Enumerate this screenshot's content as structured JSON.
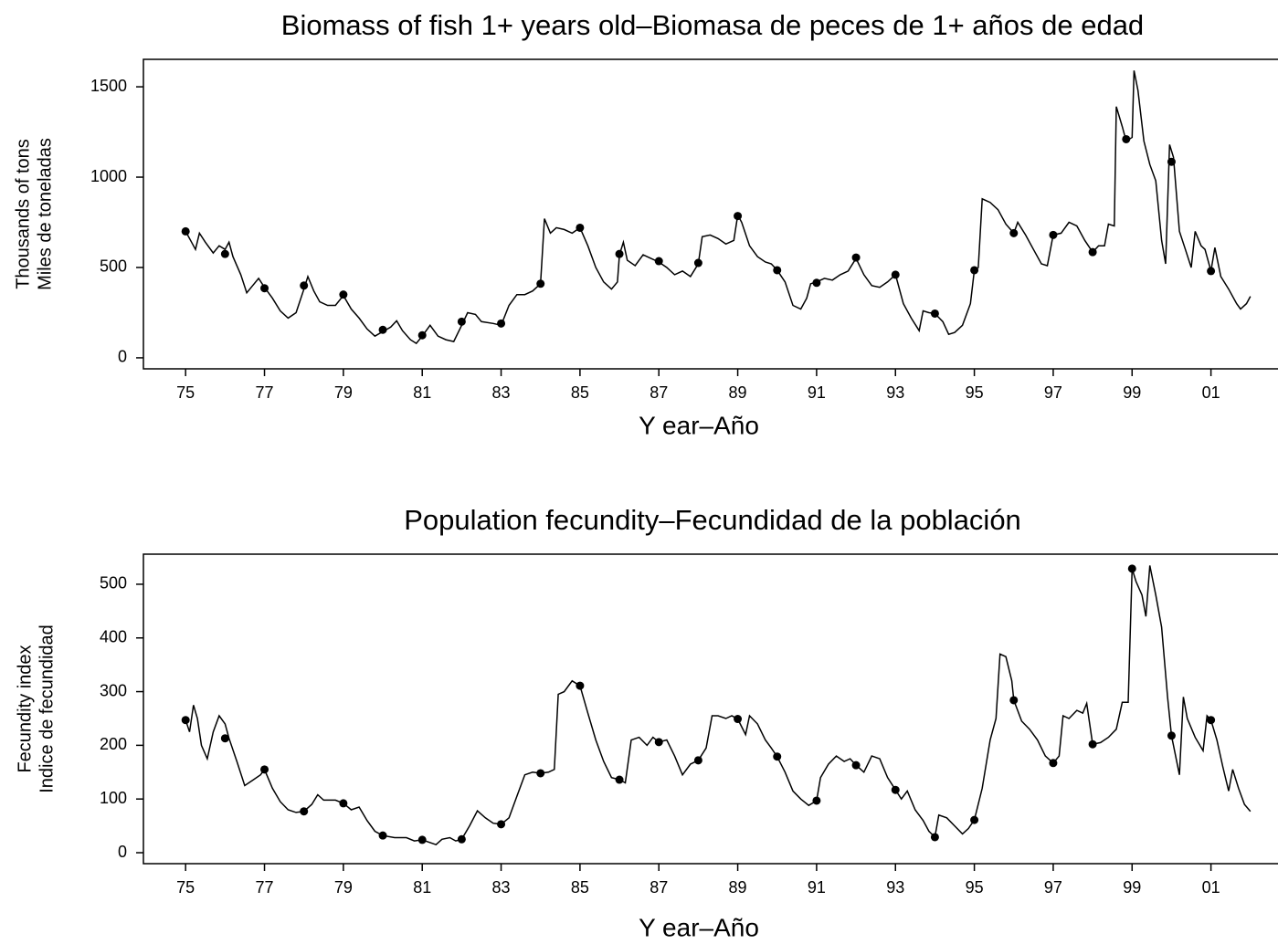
{
  "chart_data": [
    {
      "type": "line",
      "title": "Biomass of fish 1+ years old–Biomasa de peces de 1+ años de edad",
      "xlabel": "Y ear–Año",
      "ylabel": [
        "Thousands of tons",
        "Miles de toneladas"
      ],
      "xlim": [
        1973.93,
        2002.7
      ],
      "ylim": [
        -61,
        1652
      ],
      "xticks": [
        {
          "value": 1975,
          "label": "75"
        },
        {
          "value": 1977,
          "label": "77"
        },
        {
          "value": 1979,
          "label": "79"
        },
        {
          "value": 1981,
          "label": "81"
        },
        {
          "value": 1983,
          "label": "83"
        },
        {
          "value": 1985,
          "label": "85"
        },
        {
          "value": 1987,
          "label": "87"
        },
        {
          "value": 1989,
          "label": "89"
        },
        {
          "value": 1991,
          "label": "91"
        },
        {
          "value": 1993,
          "label": "93"
        },
        {
          "value": 1995,
          "label": "95"
        },
        {
          "value": 1997,
          "label": "97"
        },
        {
          "value": 1999,
          "label": "99"
        },
        {
          "value": 2001,
          "label": "01"
        }
      ],
      "yticks": [
        0,
        500,
        1000,
        1500
      ],
      "series": [
        {
          "style": "line",
          "color": "#000000",
          "x": [
            1975.0,
            1975.15,
            1975.25,
            1975.35,
            1975.5,
            1975.7,
            1975.85,
            1976.0,
            1976.1,
            1976.2,
            1976.4,
            1976.55,
            1976.7,
            1976.85,
            1977.0,
            1977.2,
            1977.4,
            1977.6,
            1977.8,
            1978.0,
            1978.1,
            1978.25,
            1978.4,
            1978.6,
            1978.8,
            1979.0,
            1979.2,
            1979.4,
            1979.6,
            1979.8,
            1980.0,
            1980.2,
            1980.35,
            1980.5,
            1980.7,
            1980.85,
            1981.0,
            1981.2,
            1981.4,
            1981.6,
            1981.8,
            1982.0,
            1982.15,
            1982.35,
            1982.5,
            1982.8,
            1983.0,
            1983.2,
            1983.4,
            1983.6,
            1983.8,
            1984.0,
            1984.1,
            1984.25,
            1984.4,
            1984.6,
            1984.8,
            1985.0,
            1985.2,
            1985.4,
            1985.6,
            1985.8,
            1985.95,
            1986.0,
            1986.1,
            1986.2,
            1986.4,
            1986.6,
            1986.8,
            1987.0,
            1987.2,
            1987.4,
            1987.6,
            1987.8,
            1988.0,
            1988.1,
            1988.3,
            1988.5,
            1988.7,
            1988.9,
            1989.0,
            1989.1,
            1989.3,
            1989.5,
            1989.7,
            1989.85,
            1990.0,
            1990.2,
            1990.4,
            1990.6,
            1990.75,
            1990.85,
            1991.0,
            1991.2,
            1991.4,
            1991.6,
            1991.8,
            1992.0,
            1992.2,
            1992.4,
            1992.6,
            1992.8,
            1993.0,
            1993.2,
            1993.4,
            1993.6,
            1993.7,
            1993.85,
            1994.0,
            1994.2,
            1994.35,
            1994.5,
            1994.7,
            1994.9,
            1995.0,
            1995.1,
            1995.2,
            1995.4,
            1995.6,
            1995.8,
            1996.0,
            1996.1,
            1996.3,
            1996.5,
            1996.7,
            1996.85,
            1997.0,
            1997.2,
            1997.4,
            1997.6,
            1997.8,
            1998.0,
            1998.15,
            1998.3,
            1998.4,
            1998.55,
            1998.6,
            1998.75,
            1998.85,
            1999.0,
            1999.05,
            1999.15,
            1999.3,
            1999.45,
            1999.6,
            1999.75,
            1999.85,
            1999.95,
            2000.05,
            2000.2,
            2000.35,
            2000.5,
            2000.6,
            2000.75,
            2000.85,
            2001.0,
            2001.1,
            2001.25,
            2001.45,
            2001.65,
            2001.75,
            2001.9,
            2002.0
          ],
          "values": [
            700,
            640,
            600,
            690,
            640,
            580,
            620,
            600,
            640,
            560,
            460,
            360,
            400,
            440,
            390,
            330,
            260,
            220,
            250,
            380,
            450,
            370,
            310,
            290,
            290,
            345,
            270,
            220,
            160,
            120,
            145,
            170,
            205,
            150,
            100,
            80,
            120,
            180,
            120,
            100,
            90,
            180,
            250,
            240,
            200,
            190,
            180,
            290,
            350,
            350,
            370,
            410,
            770,
            690,
            720,
            710,
            690,
            720,
            620,
            500,
            420,
            380,
            420,
            570,
            640,
            540,
            510,
            570,
            550,
            530,
            500,
            460,
            480,
            450,
            520,
            670,
            680,
            660,
            630,
            650,
            790,
            750,
            620,
            560,
            530,
            520,
            485,
            420,
            290,
            270,
            330,
            410,
            420,
            440,
            430,
            460,
            480,
            550,
            460,
            400,
            390,
            420,
            460,
            300,
            220,
            150,
            260,
            250,
            245,
            200,
            130,
            140,
            180,
            300,
            485,
            500,
            880,
            860,
            820,
            740,
            690,
            750,
            680,
            600,
            520,
            510,
            680,
            690,
            750,
            730,
            650,
            585,
            620,
            620,
            740,
            730,
            1390,
            1280,
            1200,
            1220,
            1590,
            1480,
            1200,
            1070,
            980,
            650,
            520,
            1180,
            1110,
            700,
            600,
            500,
            700,
            620,
            600,
            480,
            610,
            450,
            380,
            300,
            270,
            300,
            340
          ]
        },
        {
          "style": "markers",
          "color": "#000000",
          "x": [
            1975,
            1976,
            1977,
            1978,
            1979,
            1980,
            1981,
            1982,
            1983,
            1984,
            1985,
            1986,
            1987,
            1988,
            1989,
            1990,
            1991,
            1992,
            1993,
            1994,
            1995,
            1996,
            1997,
            1998,
            1998.85,
            2000,
            2001
          ],
          "values": [
            700,
            575,
            385,
            400,
            350,
            155,
            125,
            200,
            190,
            410,
            720,
            575,
            535,
            525,
            785,
            485,
            415,
            555,
            460,
            245,
            485,
            690,
            680,
            585,
            1210,
            1085,
            480
          ]
        }
      ]
    },
    {
      "type": "line",
      "title": "Population fecundity–Fecundidad de la población",
      "xlabel": "Y ear–Año",
      "ylabel": [
        "Fecundity index",
        "Indice de fecundidad"
      ],
      "xlim": [
        1973.93,
        2002.7
      ],
      "ylim": [
        -20.4,
        556
      ],
      "xticks": [
        {
          "value": 1975,
          "label": "75"
        },
        {
          "value": 1977,
          "label": "77"
        },
        {
          "value": 1979,
          "label": "79"
        },
        {
          "value": 1981,
          "label": "81"
        },
        {
          "value": 1983,
          "label": "83"
        },
        {
          "value": 1985,
          "label": "85"
        },
        {
          "value": 1987,
          "label": "87"
        },
        {
          "value": 1989,
          "label": "89"
        },
        {
          "value": 1991,
          "label": "91"
        },
        {
          "value": 1993,
          "label": "93"
        },
        {
          "value": 1995,
          "label": "95"
        },
        {
          "value": 1997,
          "label": "97"
        },
        {
          "value": 1999,
          "label": "99"
        },
        {
          "value": 2001,
          "label": "01"
        }
      ],
      "yticks": [
        0,
        100,
        200,
        300,
        400,
        500
      ],
      "series": [
        {
          "style": "line",
          "color": "#000000",
          "x": [
            1975.0,
            1975.1,
            1975.2,
            1975.3,
            1975.4,
            1975.55,
            1975.7,
            1975.85,
            1976.0,
            1976.1,
            1976.3,
            1976.5,
            1976.7,
            1976.9,
            1977.0,
            1977.2,
            1977.4,
            1977.6,
            1977.8,
            1978.0,
            1978.2,
            1978.35,
            1978.5,
            1978.8,
            1979.0,
            1979.2,
            1979.4,
            1979.6,
            1979.8,
            1980.0,
            1980.3,
            1980.6,
            1980.8,
            1981.0,
            1981.15,
            1981.35,
            1981.5,
            1981.7,
            1981.85,
            1982.0,
            1982.2,
            1982.4,
            1982.6,
            1982.8,
            1983.0,
            1983.2,
            1983.4,
            1983.6,
            1983.8,
            1984.0,
            1984.2,
            1984.35,
            1984.45,
            1984.6,
            1984.8,
            1985.0,
            1985.2,
            1985.4,
            1985.6,
            1985.8,
            1986.0,
            1986.15,
            1986.3,
            1986.5,
            1986.7,
            1986.85,
            1987.0,
            1987.2,
            1987.4,
            1987.6,
            1987.8,
            1988.0,
            1988.2,
            1988.35,
            1988.5,
            1988.7,
            1988.85,
            1989.0,
            1989.2,
            1989.3,
            1989.5,
            1989.7,
            1989.85,
            1990.0,
            1990.2,
            1990.4,
            1990.6,
            1990.8,
            1991.0,
            1991.1,
            1991.3,
            1991.5,
            1991.7,
            1991.85,
            1992.0,
            1992.2,
            1992.4,
            1992.6,
            1992.8,
            1993.0,
            1993.15,
            1993.3,
            1993.5,
            1993.7,
            1993.85,
            1994.0,
            1994.1,
            1994.3,
            1994.5,
            1994.7,
            1994.85,
            1995.0,
            1995.2,
            1995.4,
            1995.55,
            1995.65,
            1995.8,
            1995.95,
            1996.0,
            1996.2,
            1996.4,
            1996.6,
            1996.8,
            1997.0,
            1997.15,
            1997.25,
            1997.4,
            1997.6,
            1997.75,
            1997.85,
            1998.0,
            1998.2,
            1998.4,
            1998.6,
            1998.75,
            1998.9,
            1999.0,
            1999.1,
            1999.25,
            1999.35,
            1999.45,
            1999.6,
            1999.75,
            1999.9,
            2000.0,
            2000.2,
            2000.3,
            2000.4,
            2000.6,
            2000.8,
            2000.9,
            2001.0,
            2001.15,
            2001.3,
            2001.45,
            2001.55,
            2001.7,
            2001.85,
            2002.0
          ],
          "values": [
            247,
            225,
            275,
            250,
            200,
            175,
            225,
            255,
            240,
            213,
            170,
            125,
            135,
            145,
            155,
            120,
            95,
            80,
            75,
            77,
            90,
            108,
            98,
            98,
            92,
            80,
            85,
            60,
            40,
            32,
            28,
            28,
            22,
            24,
            20,
            15,
            25,
            28,
            22,
            25,
            50,
            78,
            65,
            55,
            53,
            65,
            105,
            145,
            150,
            148,
            150,
            155,
            295,
            300,
            320,
            311,
            260,
            210,
            170,
            140,
            136,
            130,
            210,
            215,
            200,
            215,
            206,
            210,
            180,
            145,
            165,
            172,
            195,
            255,
            255,
            250,
            255,
            249,
            220,
            255,
            240,
            210,
            195,
            179,
            150,
            115,
            100,
            88,
            97,
            140,
            165,
            180,
            170,
            175,
            163,
            150,
            180,
            175,
            140,
            117,
            100,
            115,
            80,
            60,
            40,
            29,
            70,
            65,
            50,
            35,
            45,
            61,
            120,
            210,
            250,
            370,
            365,
            320,
            284,
            245,
            230,
            210,
            180,
            167,
            180,
            255,
            250,
            265,
            260,
            278,
            202,
            205,
            215,
            230,
            280,
            280,
            529,
            505,
            480,
            440,
            535,
            480,
            420,
            290,
            218,
            145,
            290,
            250,
            215,
            190,
            255,
            247,
            210,
            160,
            115,
            155,
            120,
            90,
            77
          ]
        },
        {
          "style": "markers",
          "color": "#000000",
          "x": [
            1975,
            1976,
            1977,
            1978,
            1979,
            1980,
            1981,
            1982,
            1983,
            1984,
            1985,
            1986,
            1987,
            1988,
            1989,
            1990,
            1991,
            1992,
            1993,
            1994,
            1995,
            1996,
            1997,
            1998,
            1999,
            2000,
            2001
          ],
          "values": [
            247,
            213,
            155,
            77,
            92,
            32,
            24,
            25,
            53,
            148,
            311,
            136,
            206,
            172,
            249,
            179,
            97,
            163,
            117,
            29,
            61,
            284,
            167,
            202,
            529,
            218,
            247
          ]
        }
      ]
    }
  ]
}
